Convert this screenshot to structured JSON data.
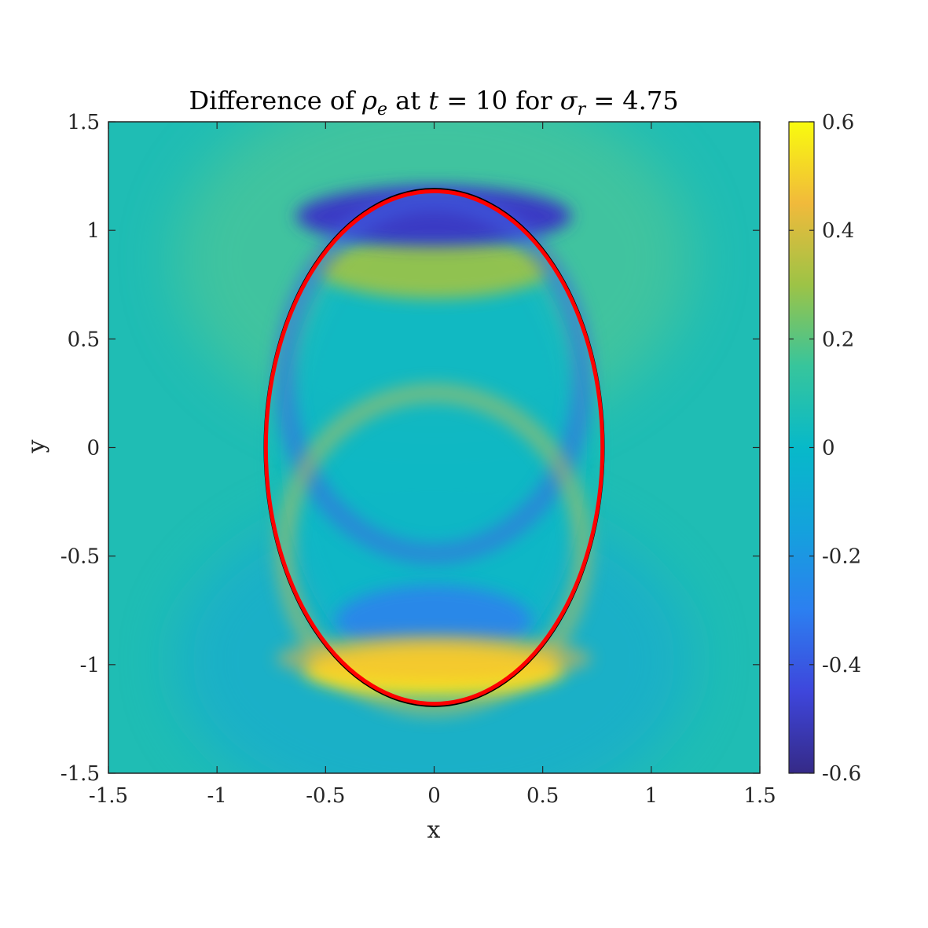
{
  "chart_data": {
    "type": "heatmap",
    "title": {
      "pre": "Difference of ",
      "rho": "ρ",
      "rho_sub": "e",
      "mid1": " at ",
      "t": "t",
      "mid2": " = 10 for ",
      "sigma": "σ",
      "sigma_sub": "r",
      "post": " = 4.75"
    },
    "xlabel": "x",
    "ylabel": "y",
    "xlim": [
      -1.5,
      1.5
    ],
    "ylim": [
      -1.5,
      1.5
    ],
    "xticks": [
      -1.5,
      -1,
      -0.5,
      0,
      0.5,
      1,
      1.5
    ],
    "xtick_labels": [
      "-1.5",
      "-1",
      "-0.5",
      "0",
      "0.5",
      "1",
      "1.5"
    ],
    "yticks": [
      -1.5,
      -1,
      -0.5,
      0,
      0.5,
      1,
      1.5
    ],
    "ytick_labels": [
      "-1.5",
      "-1",
      "-0.5",
      "0",
      "0.5",
      "1",
      "1.5"
    ],
    "colorbar": {
      "colormap": "parula",
      "clim": [
        -0.6,
        0.6
      ],
      "ticks": [
        -0.6,
        -0.4,
        -0.2,
        0,
        0.2,
        0.4,
        0.6
      ],
      "tick_labels": [
        "-0.6",
        "-0.4",
        "-0.2",
        "0",
        "0.2",
        "0.4",
        "0.6"
      ]
    },
    "contours": [
      {
        "name": "",
        "shape": "ellipse",
        "center": [
          0,
          0
        ],
        "semi_axes": [
          0.78,
          1.19
        ],
        "color": "#000000"
      },
      {
        "name": "",
        "shape": "ellipse",
        "center": [
          0,
          0
        ],
        "semi_axes": [
          0.775,
          1.18
        ],
        "color": "#ff0000"
      }
    ],
    "features": [
      {
        "region": "top band inside ellipse",
        "center": [
          0,
          1.1
        ],
        "value": -0.5
      },
      {
        "region": "upper inner band",
        "center": [
          0,
          0.82
        ],
        "value": 0.25
      },
      {
        "region": "bottom band inside ellipse",
        "center": [
          0,
          -1.12
        ],
        "value": 0.55
      },
      {
        "region": "lower inner band",
        "center": [
          0,
          -0.85
        ],
        "value": -0.25
      },
      {
        "region": "outer halo top",
        "center": [
          0,
          1.38
        ],
        "value": 0.12
      },
      {
        "region": "outer halo bottom",
        "center": [
          0,
          -1.35
        ],
        "value": -0.1
      },
      {
        "region": "background",
        "center": [
          1.3,
          0
        ],
        "value": 0.04
      }
    ],
    "grid": false,
    "box": true
  }
}
